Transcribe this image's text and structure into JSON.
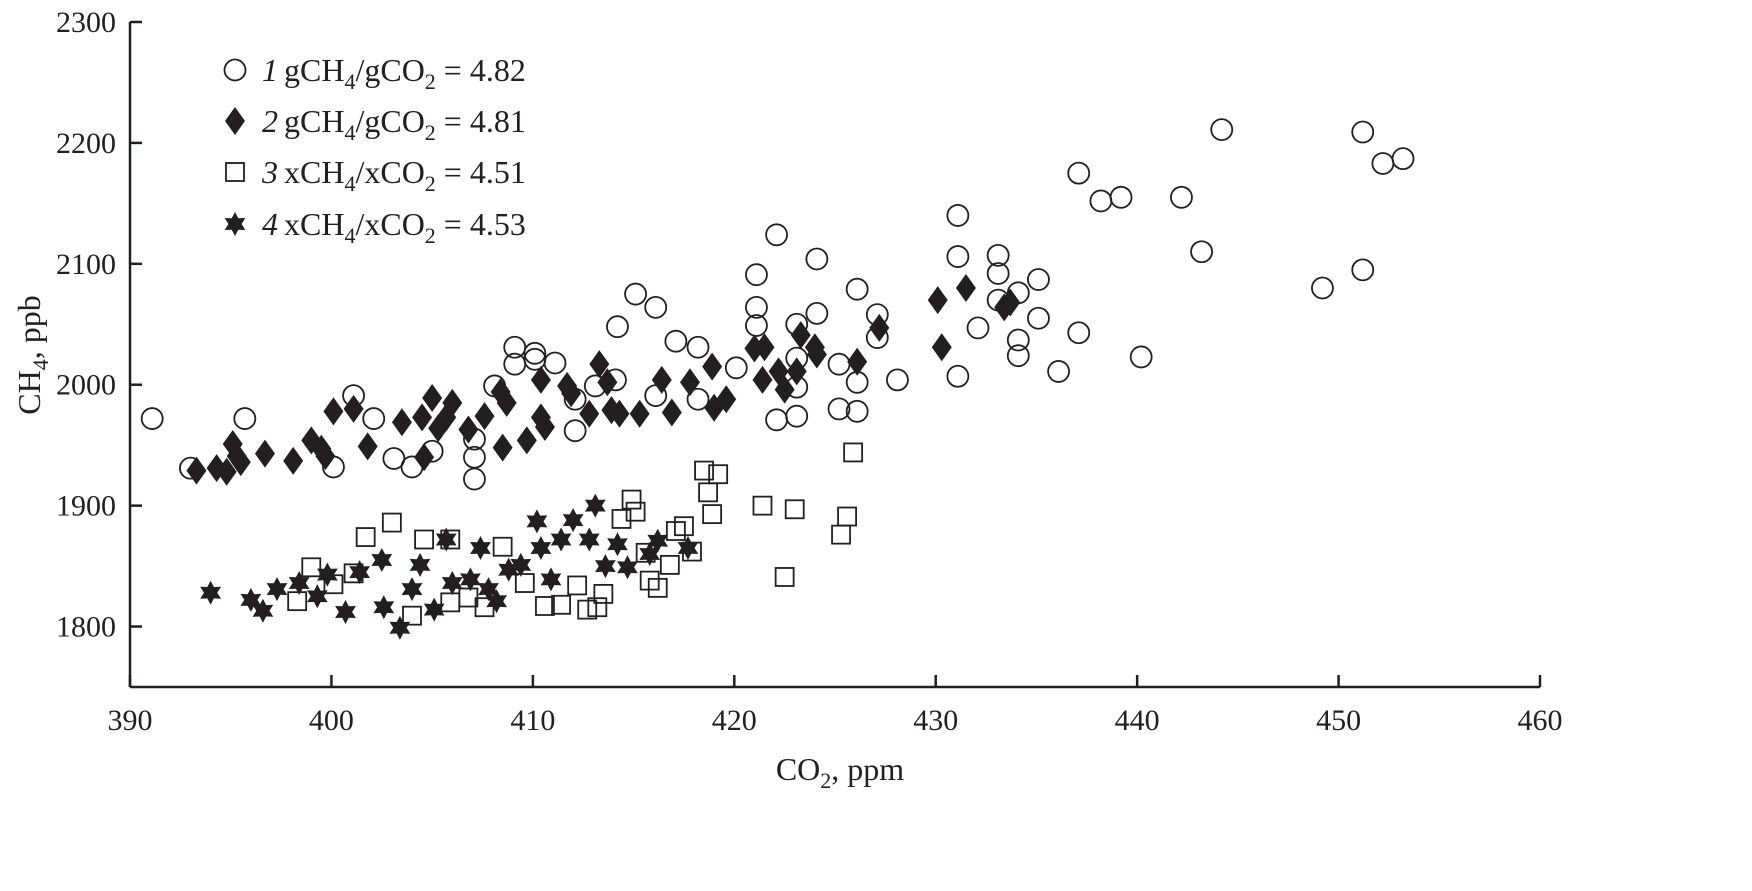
{
  "chart_data": {
    "type": "scatter",
    "title": "",
    "xlabel": {
      "main": "CO",
      "sub": "2",
      "rest": ", ppm"
    },
    "ylabel": {
      "main": "CH",
      "sub": "4",
      "rest": ", ppb"
    },
    "xlim": [
      390,
      460
    ],
    "ylim": [
      1750,
      2300
    ],
    "xticks": [
      "390",
      "400",
      "410",
      "420",
      "430",
      "440",
      "450",
      "460"
    ],
    "yticks": [
      "1800",
      "1900",
      "2000",
      "2100",
      "2200",
      "2300"
    ],
    "grid": false,
    "legend_placement": "top-left",
    "series": [
      {
        "name": "1",
        "marker": "circle-open",
        "legend": {
          "num": "1",
          "a": "gCH",
          "s1": "4",
          "b": "/gCO",
          "s2": "2",
          "c": " = 4.82"
        },
        "points": [
          [
            391.1,
            1972
          ],
          [
            393.0,
            1931
          ],
          [
            395.7,
            1972
          ],
          [
            400.1,
            1932
          ],
          [
            401.1,
            1991
          ],
          [
            402.1,
            1972
          ],
          [
            403.1,
            1939
          ],
          [
            404.0,
            1932
          ],
          [
            405.0,
            1945
          ],
          [
            407.1,
            1955
          ],
          [
            407.1,
            1940
          ],
          [
            407.1,
            1922
          ],
          [
            408.1,
            1999
          ],
          [
            409.1,
            2031
          ],
          [
            409.1,
            2017
          ],
          [
            410.1,
            2026
          ],
          [
            410.1,
            2021
          ],
          [
            411.1,
            2018
          ],
          [
            412.1,
            1962
          ],
          [
            412.1,
            1988
          ],
          [
            413.1,
            1999
          ],
          [
            414.2,
            2048
          ],
          [
            414.1,
            2004
          ],
          [
            415.1,
            2075
          ],
          [
            416.1,
            2064
          ],
          [
            416.1,
            1991
          ],
          [
            417.1,
            2036
          ],
          [
            418.2,
            2031
          ],
          [
            418.2,
            1988
          ],
          [
            420.1,
            2014
          ],
          [
            421.1,
            2091
          ],
          [
            421.1,
            2064
          ],
          [
            421.1,
            2049
          ],
          [
            422.1,
            2124
          ],
          [
            422.1,
            1971
          ],
          [
            423.1,
            2050
          ],
          [
            423.1,
            2022
          ],
          [
            423.1,
            1998
          ],
          [
            423.1,
            1974
          ],
          [
            424.1,
            2104
          ],
          [
            424.1,
            2059
          ],
          [
            425.2,
            2017
          ],
          [
            425.2,
            1980
          ],
          [
            426.1,
            2079
          ],
          [
            426.1,
            2002
          ],
          [
            426.1,
            1978
          ],
          [
            427.1,
            2058
          ],
          [
            427.1,
            2039
          ],
          [
            428.1,
            2004
          ],
          [
            431.1,
            2140
          ],
          [
            431.1,
            2106
          ],
          [
            431.1,
            2007
          ],
          [
            432.1,
            2047
          ],
          [
            433.1,
            2107
          ],
          [
            433.1,
            2092
          ],
          [
            433.1,
            2070
          ],
          [
            434.1,
            2076
          ],
          [
            434.1,
            2037
          ],
          [
            434.1,
            2024
          ],
          [
            435.1,
            2087
          ],
          [
            435.1,
            2055
          ],
          [
            436.1,
            2011
          ],
          [
            437.1,
            2175
          ],
          [
            437.1,
            2043
          ],
          [
            438.2,
            2152
          ],
          [
            439.2,
            2155
          ],
          [
            440.2,
            2023
          ],
          [
            442.2,
            2155
          ],
          [
            443.2,
            2110
          ],
          [
            444.2,
            2211
          ],
          [
            449.2,
            2080
          ],
          [
            451.2,
            2209
          ],
          [
            451.2,
            2095
          ],
          [
            452.2,
            2183
          ],
          [
            453.2,
            2187
          ]
        ]
      },
      {
        "name": "2",
        "marker": "diamond-filled",
        "legend": {
          "num": "2",
          "a": "gCH",
          "s1": "4",
          "b": "/gCO",
          "s2": "2",
          "c": " = 4.81"
        },
        "points": [
          [
            393.3,
            1929
          ],
          [
            394.3,
            1931
          ],
          [
            394.8,
            1928
          ],
          [
            395.1,
            1951
          ],
          [
            395.3,
            1941
          ],
          [
            395.5,
            1936
          ],
          [
            396.7,
            1943
          ],
          [
            398.1,
            1937
          ],
          [
            399.0,
            1954
          ],
          [
            399.5,
            1947
          ],
          [
            399.7,
            1941
          ],
          [
            400.1,
            1978
          ],
          [
            401.1,
            1980
          ],
          [
            401.8,
            1949
          ],
          [
            403.5,
            1969
          ],
          [
            404.5,
            1973
          ],
          [
            404.6,
            1940
          ],
          [
            405.0,
            1989
          ],
          [
            405.3,
            1964
          ],
          [
            405.7,
            1973
          ],
          [
            406.0,
            1985
          ],
          [
            406.8,
            1963
          ],
          [
            407.6,
            1974
          ],
          [
            408.4,
            1994
          ],
          [
            408.7,
            1985
          ],
          [
            408.5,
            1948
          ],
          [
            409.7,
            1954
          ],
          [
            410.4,
            2004
          ],
          [
            410.4,
            1973
          ],
          [
            410.6,
            1965
          ],
          [
            411.7,
            1999
          ],
          [
            411.9,
            1993
          ],
          [
            412.8,
            1976
          ],
          [
            413.3,
            2017
          ],
          [
            413.7,
            2002
          ],
          [
            413.9,
            1979
          ],
          [
            414.3,
            1976
          ],
          [
            415.3,
            1976
          ],
          [
            416.4,
            2004
          ],
          [
            416.9,
            1977
          ],
          [
            417.8,
            2002
          ],
          [
            418.9,
            2015
          ],
          [
            419.0,
            1981
          ],
          [
            419.6,
            1988
          ],
          [
            421.0,
            2030
          ],
          [
            421.5,
            2031
          ],
          [
            421.4,
            2004
          ],
          [
            422.2,
            2011
          ],
          [
            422.5,
            1996
          ],
          [
            423.1,
            2011
          ],
          [
            423.3,
            2041
          ],
          [
            424.0,
            2031
          ],
          [
            424.1,
            2025
          ],
          [
            426.1,
            2019
          ],
          [
            427.2,
            2047
          ],
          [
            430.1,
            2070
          ],
          [
            430.3,
            2031
          ],
          [
            431.5,
            2080
          ],
          [
            433.4,
            2064
          ],
          [
            433.7,
            2068
          ]
        ]
      },
      {
        "name": "3",
        "marker": "square-open",
        "legend": {
          "num": "3",
          "a": "xCH",
          "s1": "4",
          "b": "/xCO",
          "s2": "2",
          "c": " = 4.51"
        },
        "points": [
          [
            398.3,
            1821
          ],
          [
            399.0,
            1849
          ],
          [
            400.1,
            1835
          ],
          [
            401.1,
            1844
          ],
          [
            401.7,
            1874
          ],
          [
            403.0,
            1886
          ],
          [
            404.0,
            1809
          ],
          [
            404.6,
            1872
          ],
          [
            405.9,
            1872
          ],
          [
            405.9,
            1820
          ],
          [
            406.8,
            1824
          ],
          [
            407.6,
            1816
          ],
          [
            408.5,
            1866
          ],
          [
            409.6,
            1836
          ],
          [
            410.6,
            1817
          ],
          [
            411.4,
            1818
          ],
          [
            412.2,
            1834
          ],
          [
            412.7,
            1814
          ],
          [
            413.2,
            1816
          ],
          [
            413.5,
            1827
          ],
          [
            414.4,
            1889
          ],
          [
            414.9,
            1905
          ],
          [
            415.1,
            1895
          ],
          [
            415.6,
            1861
          ],
          [
            415.8,
            1838
          ],
          [
            416.2,
            1832
          ],
          [
            416.8,
            1851
          ],
          [
            417.1,
            1879
          ],
          [
            417.5,
            1883
          ],
          [
            417.9,
            1862
          ],
          [
            418.5,
            1929
          ],
          [
            418.7,
            1911
          ],
          [
            418.9,
            1893
          ],
          [
            419.2,
            1926
          ],
          [
            421.4,
            1900
          ],
          [
            422.5,
            1841
          ],
          [
            423.0,
            1897
          ],
          [
            425.3,
            1876
          ],
          [
            425.6,
            1891
          ],
          [
            425.9,
            1944
          ]
        ]
      },
      {
        "name": "4",
        "marker": "star-filled",
        "legend": {
          "num": "4",
          "a": "xCH",
          "s1": "4",
          "b": "/xCO",
          "s2": "2",
          "c": " = 4.53"
        },
        "points": [
          [
            394.0,
            1828
          ],
          [
            396.0,
            1822
          ],
          [
            396.6,
            1813
          ],
          [
            397.3,
            1831
          ],
          [
            398.4,
            1836
          ],
          [
            399.3,
            1825
          ],
          [
            399.8,
            1843
          ],
          [
            400.7,
            1812
          ],
          [
            401.4,
            1845
          ],
          [
            402.5,
            1855
          ],
          [
            402.6,
            1816
          ],
          [
            403.4,
            1799
          ],
          [
            404.0,
            1831
          ],
          [
            404.4,
            1851
          ],
          [
            405.1,
            1814
          ],
          [
            405.7,
            1872
          ],
          [
            406.0,
            1836
          ],
          [
            406.9,
            1839
          ],
          [
            407.4,
            1865
          ],
          [
            407.8,
            1831
          ],
          [
            408.2,
            1821
          ],
          [
            408.8,
            1847
          ],
          [
            409.4,
            1851
          ],
          [
            410.2,
            1887
          ],
          [
            410.4,
            1865
          ],
          [
            410.9,
            1839
          ],
          [
            411.4,
            1872
          ],
          [
            412.0,
            1888
          ],
          [
            412.8,
            1872
          ],
          [
            413.1,
            1900
          ],
          [
            413.6,
            1850
          ],
          [
            414.2,
            1868
          ],
          [
            414.7,
            1849
          ],
          [
            415.8,
            1860
          ],
          [
            416.2,
            1871
          ],
          [
            417.7,
            1865
          ]
        ]
      }
    ]
  }
}
